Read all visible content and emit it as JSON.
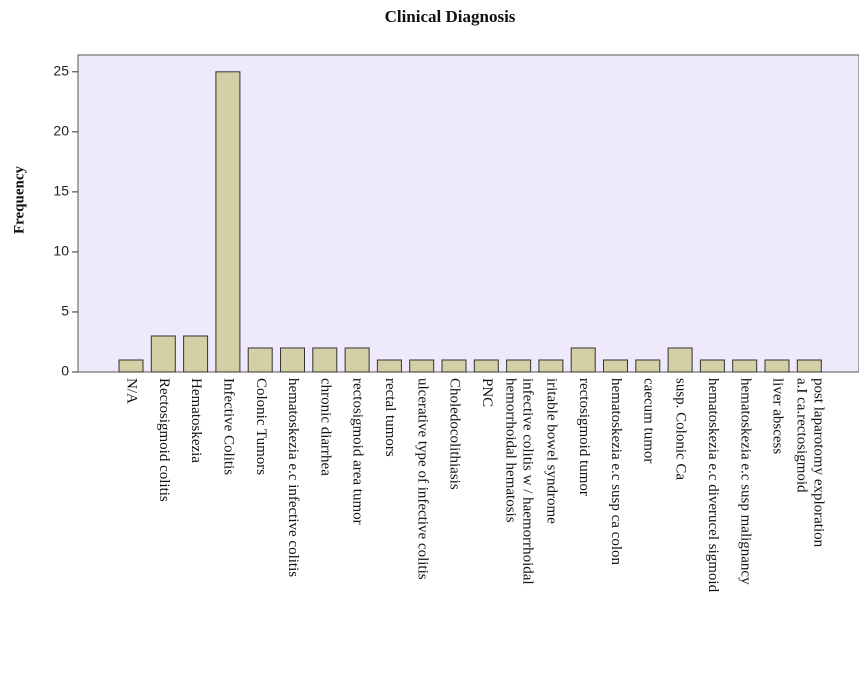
{
  "chart_data": {
    "type": "bar",
    "title": "Clinical Diagnosis",
    "y_label": "Frequency",
    "categories": [
      "N/A",
      "Rectosigmoid colitis",
      "Hematoskezia",
      "Infective Colitis",
      "Colonic Tumors",
      "hematoskezia e.c infective colitis",
      "chronic diarrhea",
      "rectosigmoid area tumor",
      "rectal tumors",
      "ulcerative type of infective colitis",
      "Choledocolithiasis",
      "PNC",
      [
        "infective colitis w / haemorrhoidal",
        "hemorrhoidal hematosis"
      ],
      "iritable bowel syndrome",
      "rectosigmoid tumor",
      "hematoskezia e.c susp ca colon",
      "caecum tumor",
      "susp. Colonic Ca",
      "hematoskezia e.c diverucel sigmoid",
      "hematoskezia e.c susp malignancy",
      "liver abscess",
      [
        "post laparotomy exploration",
        "a.I ca.rectosigmoid"
      ]
    ],
    "values": [
      1,
      3,
      3,
      25,
      2,
      2,
      2,
      2,
      1,
      1,
      1,
      1,
      1,
      1,
      2,
      1,
      1,
      2,
      1,
      1,
      1,
      1
    ],
    "color": "#d4cfa5",
    "plot_background": "#eeeafc",
    "ylim": [
      0,
      26.4
    ],
    "yticks": [
      0,
      5,
      10,
      15,
      20,
      25
    ],
    "grid": false
  }
}
